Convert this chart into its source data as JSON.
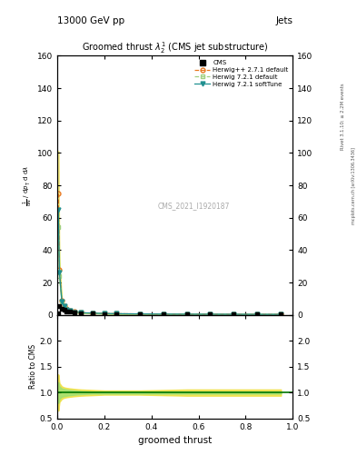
{
  "title": "13000 GeV pp",
  "right_title": "Jets",
  "plot_title": "Groomed thrust $\\lambda_2^1$ (CMS jet substructure)",
  "watermark": "CMS_2021_I1920187",
  "right_label": "mcplots.cern.ch [arXiv:1306.3436]",
  "right_label2": "Rivet 3.1.10; ≥ 2.2M events",
  "xlabel": "groomed thrust",
  "ylabel_lines": [
    "mathrm d^2N",
    "mathrm d p_T mathrm d lambda"
  ],
  "ylabel_ratio": "Ratio to CMS",
  "xlim": [
    0,
    1
  ],
  "ylim_main": [
    0,
    160
  ],
  "ylim_ratio": [
    0.5,
    2.5
  ],
  "yticks_main": [
    0,
    20,
    40,
    60,
    80,
    100,
    120,
    140,
    160
  ],
  "yticks_ratio": [
    0.5,
    1.0,
    1.5,
    2.0
  ],
  "x_data": [
    0.005,
    0.01,
    0.02,
    0.03,
    0.04,
    0.055,
    0.075,
    0.1,
    0.15,
    0.2,
    0.25,
    0.35,
    0.45,
    0.55,
    0.65,
    0.75,
    0.85,
    0.95
  ],
  "cms_values": [
    1.0,
    5.5,
    4.0,
    3.0,
    2.2,
    1.8,
    1.3,
    1.0,
    0.8,
    0.65,
    0.55,
    0.45,
    0.4,
    0.38,
    0.35,
    0.33,
    0.31,
    0.3
  ],
  "herwig_pp_values": [
    75,
    28,
    9.0,
    5.5,
    3.8,
    2.8,
    1.9,
    1.4,
    1.1,
    0.9,
    0.75,
    0.6,
    0.5,
    0.45,
    0.42,
    0.38,
    0.35,
    0.33
  ],
  "herwig721_default_values": [
    54,
    24,
    8.0,
    5.0,
    3.2,
    2.4,
    1.7,
    1.3,
    1.05,
    0.85,
    0.7,
    0.58,
    0.48,
    0.43,
    0.4,
    0.37,
    0.34,
    0.32
  ],
  "herwig721_soft_values": [
    65,
    26,
    8.5,
    5.2,
    3.4,
    2.5,
    1.75,
    1.35,
    1.08,
    0.88,
    0.73,
    0.59,
    0.49,
    0.44,
    0.41,
    0.38,
    0.35,
    0.33
  ],
  "ratio_hpp_upper": [
    1.35,
    1.18,
    1.12,
    1.1,
    1.09,
    1.08,
    1.07,
    1.06,
    1.05,
    1.04,
    1.04,
    1.04,
    1.05,
    1.06,
    1.06,
    1.06,
    1.06,
    1.06
  ],
  "ratio_hpp_lower": [
    0.65,
    0.82,
    0.88,
    0.9,
    0.91,
    0.92,
    0.93,
    0.94,
    0.95,
    0.96,
    0.96,
    0.96,
    0.95,
    0.94,
    0.94,
    0.94,
    0.94,
    0.94
  ],
  "ratio_h721_upper": [
    1.2,
    1.12,
    1.08,
    1.07,
    1.06,
    1.05,
    1.04,
    1.03,
    1.02,
    1.02,
    1.02,
    1.02,
    1.02,
    1.02,
    1.02,
    1.02,
    1.02,
    1.02
  ],
  "ratio_h721_lower": [
    0.8,
    0.88,
    0.92,
    0.93,
    0.94,
    0.95,
    0.96,
    0.97,
    0.98,
    0.98,
    0.98,
    0.98,
    0.98,
    0.98,
    0.98,
    0.98,
    0.98,
    0.98
  ],
  "cms_color": "#000000",
  "herwig_pp_color": "#e87820",
  "herwig721_default_color": "#a0d080",
  "herwig721_soft_color": "#209090",
  "herwig_pp_band_color": "#f0e040",
  "herwig721_band_color": "#a0e070",
  "background_color": "#ffffff"
}
